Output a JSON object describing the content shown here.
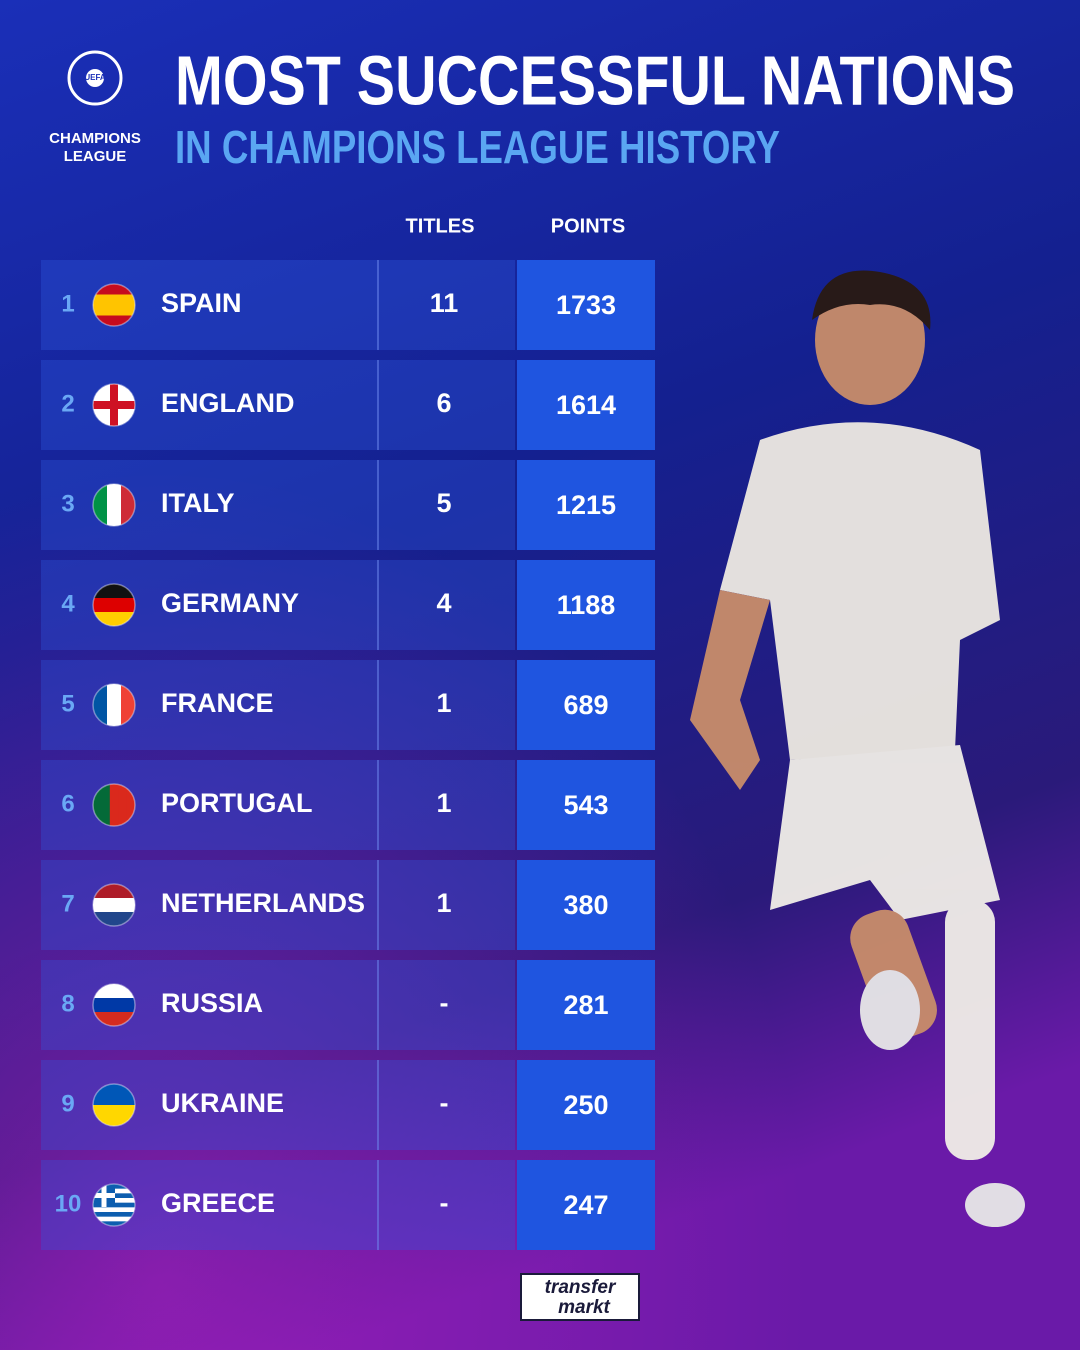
{
  "logo": {
    "lines": [
      "UEFA",
      "CHAMPIONS",
      "LEAGUE"
    ]
  },
  "header": {
    "title": "MOST SUCCESSFUL NATIONS",
    "subtitle": "IN CHAMPIONS LEAGUE HISTORY"
  },
  "table": {
    "columns": [
      "TITLES",
      "POINTS"
    ],
    "rows": [
      [
        1,
        "SPAIN",
        11,
        1733
      ],
      [
        2,
        "ENGLAND",
        6,
        1614
      ],
      [
        3,
        "ITALY",
        5,
        1215
      ],
      [
        4,
        "GERMANY",
        4,
        1188
      ],
      [
        5,
        "FRANCE",
        1,
        689
      ],
      [
        6,
        "PORTUGAL",
        1,
        543
      ],
      [
        7,
        "NETHERLANDS",
        1,
        380
      ],
      [
        8,
        "RUSSIA",
        "-",
        281
      ],
      [
        9,
        "UKRAINE",
        "-",
        250
      ],
      [
        10,
        "GREECE",
        "-",
        247
      ]
    ]
  },
  "footer": {
    "brand": [
      "transfer",
      "markt"
    ]
  }
}
